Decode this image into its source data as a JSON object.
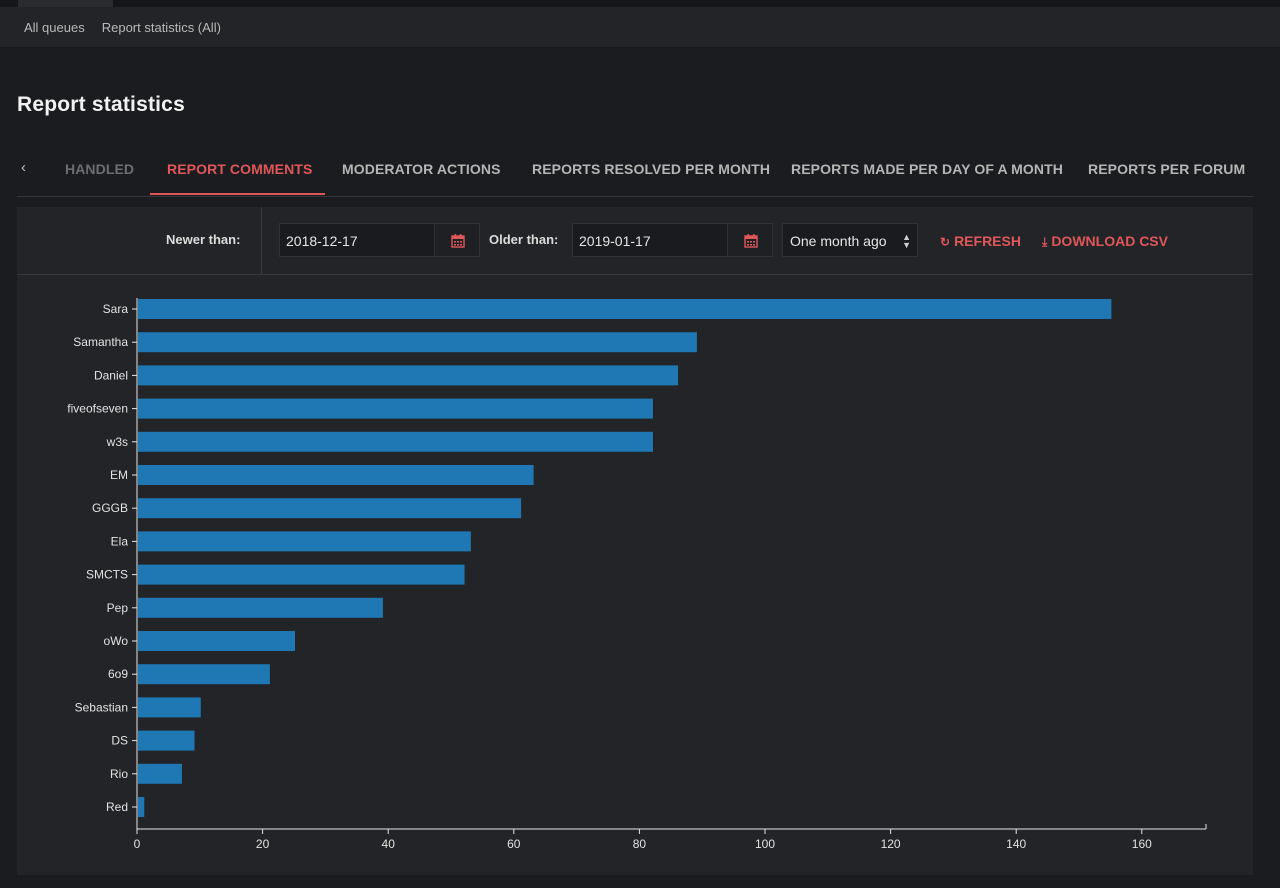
{
  "breadcrumb": [
    "All queues",
    "Report statistics (All)"
  ],
  "page_title": "Report statistics",
  "tabs": [
    {
      "label": "HANDLED"
    },
    {
      "label": "REPORT COMMENTS"
    },
    {
      "label": "MODERATOR ACTIONS"
    },
    {
      "label": "REPORTS RESOLVED PER MONTH"
    },
    {
      "label": "REPORTS MADE PER DAY OF A MONTH"
    },
    {
      "label": "REPORTS PER FORUM"
    }
  ],
  "active_tab": "REPORT COMMENTS",
  "filters": {
    "newer_label": "Newer than:",
    "newer_value": "2018-12-17",
    "older_label": "Older than:",
    "older_value": "2019-01-17",
    "range_select": "One month ago",
    "refresh_label": "REFRESH",
    "download_label": "DOWNLOAD CSV"
  },
  "icons": {
    "tab_prev": "chevron-left-icon",
    "calendar": "calendar-icon",
    "refresh": "refresh-icon",
    "download": "download-icon"
  },
  "colors": {
    "accent": "#e0575a",
    "bar": "#1f77b4",
    "background": "#1b1c1f",
    "panel": "#232427"
  },
  "chart_data": {
    "type": "bar",
    "orientation": "horizontal",
    "categories": [
      "Sara",
      "Samantha",
      "Daniel",
      "fiveofseven",
      "w3s",
      "EM",
      "GGGB",
      "Ela",
      "SMCTS",
      "Pep",
      "oWo",
      "6o9",
      "Sebastian",
      "DS",
      "Rio",
      "Red"
    ],
    "values": [
      155,
      89,
      86,
      82,
      82,
      63,
      61,
      53,
      52,
      39,
      25,
      21,
      10,
      9,
      7,
      1
    ],
    "xticks": [
      0,
      20,
      40,
      60,
      80,
      100,
      120,
      140,
      160
    ],
    "xlim": [
      0,
      170
    ],
    "grid": false
  }
}
